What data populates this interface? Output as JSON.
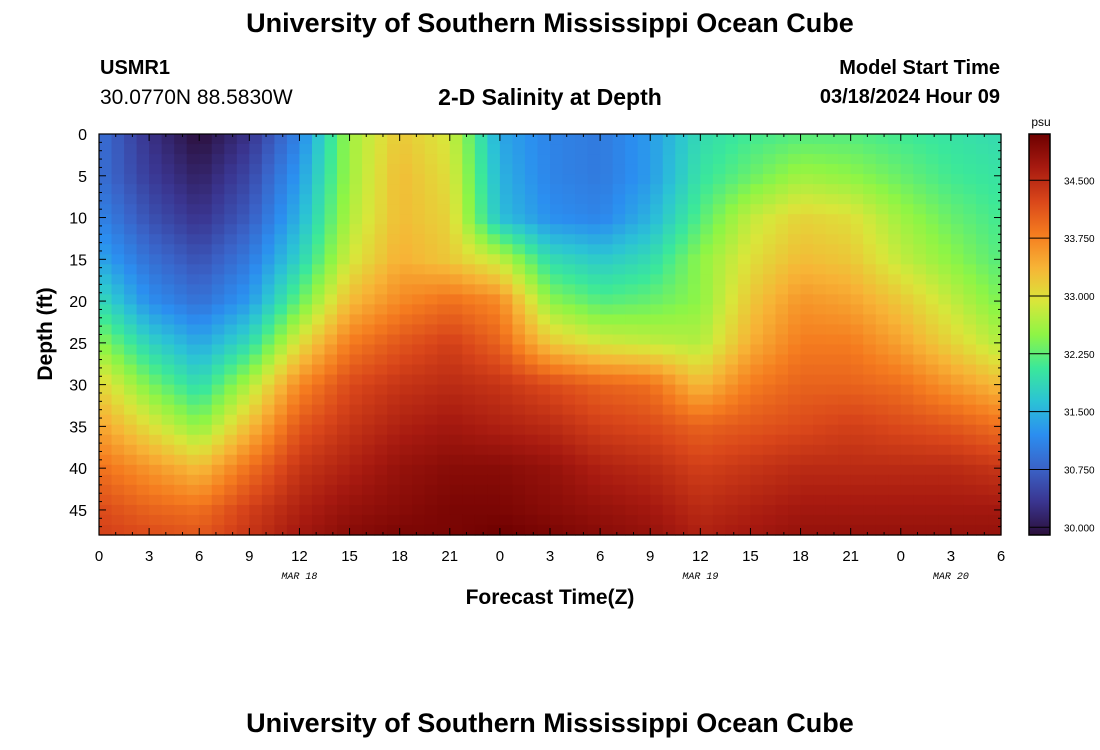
{
  "header": {
    "title": "University of Southern Mississippi Ocean Cube",
    "station_id": "USMR1",
    "station_coords": "30.0770N  88.5830W",
    "plot_title": "2-D Salinity at Depth",
    "start_label": "Model Start Time",
    "start_value": "03/18/2024 Hour 09"
  },
  "footer": {
    "title": "University of Southern Mississippi Ocean Cube"
  },
  "chart_data": {
    "type": "heatmap",
    "title": "2-D Salinity at Depth",
    "xlabel": "Forecast Time(Z)",
    "ylabel": "Depth (ft)",
    "x_tick_labels": [
      "0",
      "3",
      "6",
      "9",
      "12",
      "15",
      "18",
      "21",
      "0",
      "3",
      "6",
      "9",
      "12",
      "15",
      "18",
      "21",
      "0",
      "3",
      "6"
    ],
    "date_labels": [
      {
        "label": "MAR 18",
        "hour": 12
      },
      {
        "label": "MAR 19",
        "hour": 36
      },
      {
        "label": "MAR 20",
        "hour": 51
      }
    ],
    "x_hours_range": [
      0,
      54
    ],
    "y_ticks": [
      0,
      5,
      10,
      15,
      20,
      25,
      30,
      35,
      40,
      45
    ],
    "ylim": [
      0,
      48
    ],
    "y_inverted": true,
    "colorbar": {
      "unit": "psu",
      "ticks": [
        "34.500",
        "33.750",
        "33.000",
        "32.250",
        "31.500",
        "30.750",
        "30.000"
      ],
      "range": [
        29.9,
        35.1
      ],
      "colors": [
        "#2b0f3a",
        "#3a3590",
        "#3a63c8",
        "#2b8ef0",
        "#2bc3d5",
        "#3be89a",
        "#8ef545",
        "#d9e63a",
        "#f7b436",
        "#f57c1f",
        "#d9461a",
        "#a71a10",
        "#6e0000"
      ]
    },
    "times_hours": [
      0,
      3,
      6,
      9,
      12,
      15,
      18,
      21,
      24,
      27,
      30,
      33,
      36,
      39,
      42,
      45,
      48,
      51,
      54
    ],
    "depths_ft": [
      0,
      5,
      10,
      15,
      20,
      25,
      30,
      35,
      40,
      45,
      48
    ],
    "salinity_psu": [
      [
        30.9,
        30.3,
        29.9,
        30.3,
        31.1,
        32.6,
        33.2,
        32.9,
        31.4,
        31.1,
        31.0,
        31.3,
        31.9,
        32.1,
        32.2,
        32.2,
        32.1,
        32.0,
        31.9
      ],
      [
        30.9,
        30.4,
        30.1,
        30.5,
        31.3,
        32.6,
        33.3,
        33.0,
        31.5,
        31.1,
        31.0,
        31.3,
        32.0,
        32.3,
        32.6,
        32.5,
        32.3,
        32.1,
        32.0
      ],
      [
        31.1,
        30.6,
        30.3,
        30.7,
        31.5,
        32.7,
        33.3,
        33.1,
        31.6,
        31.2,
        31.1,
        31.5,
        32.2,
        32.8,
        33.1,
        33.0,
        32.6,
        32.3,
        32.1
      ],
      [
        31.4,
        30.9,
        30.6,
        31.0,
        31.8,
        32.9,
        33.4,
        33.2,
        32.8,
        31.9,
        31.7,
        31.9,
        32.5,
        33.0,
        33.3,
        33.2,
        32.8,
        32.5,
        32.2
      ],
      [
        31.9,
        31.2,
        30.9,
        31.3,
        32.3,
        33.3,
        33.7,
        33.9,
        33.7,
        32.5,
        32.2,
        32.3,
        32.5,
        33.2,
        33.6,
        33.5,
        33.2,
        32.8,
        32.4
      ],
      [
        32.5,
        31.8,
        31.4,
        31.9,
        33.0,
        33.8,
        34.1,
        34.3,
        34.0,
        33.2,
        32.9,
        32.8,
        32.7,
        33.4,
        33.8,
        33.8,
        33.5,
        33.1,
        32.7
      ],
      [
        33.1,
        32.4,
        31.9,
        32.7,
        33.7,
        34.2,
        34.4,
        34.5,
        34.4,
        34.2,
        34.0,
        33.9,
        33.3,
        33.8,
        34.0,
        34.0,
        33.9,
        33.6,
        33.3
      ],
      [
        33.5,
        33.0,
        32.5,
        33.3,
        34.1,
        34.4,
        34.6,
        34.7,
        34.6,
        34.5,
        34.3,
        34.2,
        34.0,
        34.1,
        34.2,
        34.3,
        34.2,
        34.1,
        33.9
      ],
      [
        33.9,
        33.6,
        33.3,
        33.9,
        34.4,
        34.6,
        34.8,
        34.9,
        34.9,
        34.8,
        34.6,
        34.5,
        34.3,
        34.4,
        34.5,
        34.5,
        34.5,
        34.5,
        34.4
      ],
      [
        34.2,
        34.0,
        33.9,
        34.3,
        34.6,
        34.8,
        34.9,
        35.0,
        35.0,
        34.9,
        34.8,
        34.7,
        34.5,
        34.6,
        34.7,
        34.7,
        34.7,
        34.7,
        34.7
      ],
      [
        34.3,
        34.2,
        34.1,
        34.4,
        34.7,
        34.9,
        35.0,
        35.0,
        35.1,
        35.0,
        34.9,
        34.8,
        34.6,
        34.7,
        34.8,
        34.8,
        34.8,
        34.8,
        34.8
      ]
    ]
  }
}
